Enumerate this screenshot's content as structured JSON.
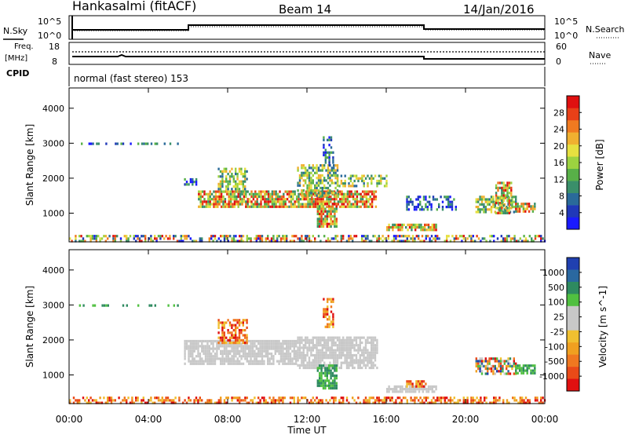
{
  "header": {
    "station": "Hankasalmi (fitACF)",
    "beam": "Beam 14",
    "date": "14/Jan/2016"
  },
  "panels": {
    "nsky": {
      "left_label": "N.Sky",
      "right_label": "N.Search",
      "left_ticks": [
        "10^5",
        "10^0"
      ],
      "right_ticks": [
        "10^5",
        "10^0"
      ]
    },
    "freq": {
      "left_label_1": "Freq.",
      "left_label_2": "[MHz]",
      "left_ticks": [
        "18",
        "8"
      ],
      "right_label": "Nave",
      "right_ticks": [
        "60",
        "0"
      ]
    },
    "cpid": {
      "label": "CPID",
      "text": "normal (fast stereo) 153"
    }
  },
  "chart_data": [
    {
      "type": "heatmap",
      "name": "power",
      "ylabel": "Slant Range [km]",
      "xlabel": "Time UT",
      "x_ticks": [
        "00:00",
        "04:00",
        "08:00",
        "12:00",
        "16:00",
        "20:00",
        "00:00"
      ],
      "x_range_hours": [
        0,
        24
      ],
      "y_ticks": [
        1000,
        2000,
        3000,
        4000
      ],
      "ylim": [
        180,
        4580
      ],
      "colorbar": {
        "label": "Power [dB]",
        "ticks": [
          "4",
          "8",
          "12",
          "16",
          "20",
          "24",
          "28"
        ],
        "colors": [
          "#1a1aff",
          "#2038b8",
          "#2a6a9a",
          "#3a8f6a",
          "#58b048",
          "#9cd240",
          "#e6e040",
          "#f0b030",
          "#f07a20",
          "#e84018",
          "#e01010"
        ]
      },
      "regions": [
        {
          "t": [
            0.0,
            24.0
          ],
          "r": [
            180,
            380
          ],
          "level": "mixed",
          "density": 0.5
        },
        {
          "t": [
            0.5,
            5.5
          ],
          "r": [
            2960,
            3020
          ],
          "level": "low",
          "density": 0.4
        },
        {
          "t": [
            5.8,
            6.4
          ],
          "r": [
            1800,
            2000
          ],
          "level": "low",
          "density": 0.7
        },
        {
          "t": [
            6.5,
            15.5
          ],
          "r": [
            1150,
            1650
          ],
          "level": "high",
          "density": 0.8
        },
        {
          "t": [
            7.5,
            9.0
          ],
          "r": [
            1600,
            2300
          ],
          "level": "mid",
          "density": 0.6
        },
        {
          "t": [
            11.5,
            13.5
          ],
          "r": [
            1500,
            2400
          ],
          "level": "mid",
          "density": 0.6
        },
        {
          "t": [
            12.5,
            13.5
          ],
          "r": [
            650,
            1300
          ],
          "level": "high",
          "density": 0.8
        },
        {
          "t": [
            12.8,
            13.3
          ],
          "r": [
            2400,
            3200
          ],
          "level": "low",
          "density": 0.5
        },
        {
          "t": [
            13.5,
            16.0
          ],
          "r": [
            1800,
            2100
          ],
          "level": "mid",
          "density": 0.5
        },
        {
          "t": [
            16.0,
            18.5
          ],
          "r": [
            500,
            700
          ],
          "level": "high",
          "density": 0.8
        },
        {
          "t": [
            17.0,
            19.5
          ],
          "r": [
            1100,
            1500
          ],
          "level": "low",
          "density": 0.5
        },
        {
          "t": [
            20.5,
            22.5
          ],
          "r": [
            1000,
            1500
          ],
          "level": "mid",
          "density": 0.6
        },
        {
          "t": [
            21.5,
            22.3
          ],
          "r": [
            1000,
            1900
          ],
          "level": "high",
          "density": 0.7
        },
        {
          "t": [
            22.5,
            23.5
          ],
          "r": [
            1050,
            1300
          ],
          "level": "high",
          "density": 0.8
        }
      ]
    },
    {
      "type": "heatmap",
      "name": "velocity",
      "ylabel": "Slant Range [km]",
      "xlabel": "Time UT",
      "x_ticks": [
        "00:00",
        "04:00",
        "08:00",
        "12:00",
        "16:00",
        "20:00",
        "00:00"
      ],
      "x_range_hours": [
        0,
        24
      ],
      "y_ticks": [
        1000,
        2000,
        3000,
        4000
      ],
      "ylim": [
        180,
        4580
      ],
      "colorbar": {
        "label": "Velocity [m s^-1]",
        "ticks": [
          "1000",
          "500",
          "100",
          "25",
          "-25",
          "-100",
          "-500",
          "-1000"
        ],
        "colors": [
          "#2040b0",
          "#2a68a0",
          "#2e8a60",
          "#50c040",
          "#c8c8c8",
          "#c8c8c8",
          "#f0c030",
          "#f0a020",
          "#f07820",
          "#ea4a18",
          "#e01010"
        ]
      },
      "regions": [
        {
          "t": [
            0.0,
            24.0
          ],
          "r": [
            180,
            380
          ],
          "level": "warm",
          "density": 0.5
        },
        {
          "t": [
            0.5,
            5.5
          ],
          "r": [
            2960,
            3020
          ],
          "level": "green",
          "density": 0.4
        },
        {
          "t": [
            5.8,
            11.5
          ],
          "r": [
            1300,
            2000
          ],
          "level": "grey",
          "density": 0.8
        },
        {
          "t": [
            11.5,
            15.5
          ],
          "r": [
            1200,
            2100
          ],
          "level": "grey",
          "density": 0.8
        },
        {
          "t": [
            7.5,
            9.0
          ],
          "r": [
            1900,
            2600
          ],
          "level": "warm",
          "density": 0.6
        },
        {
          "t": [
            12.5,
            13.5
          ],
          "r": [
            650,
            1300
          ],
          "level": "green",
          "density": 0.8
        },
        {
          "t": [
            12.8,
            13.3
          ],
          "r": [
            2400,
            3200
          ],
          "level": "warm",
          "density": 0.5
        },
        {
          "t": [
            16.0,
            18.5
          ],
          "r": [
            500,
            700
          ],
          "level": "grey",
          "density": 0.8
        },
        {
          "t": [
            17.0,
            18.0
          ],
          "r": [
            700,
            850
          ],
          "level": "warm",
          "density": 0.7
        },
        {
          "t": [
            20.5,
            22.5
          ],
          "r": [
            1000,
            1500
          ],
          "level": "mixed",
          "density": 0.6
        },
        {
          "t": [
            22.5,
            23.5
          ],
          "r": [
            1050,
            1300
          ],
          "level": "green",
          "density": 0.8
        }
      ]
    }
  ]
}
